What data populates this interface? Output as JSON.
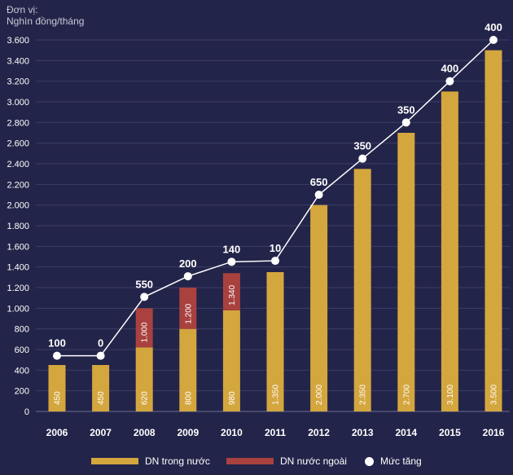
{
  "unit_label_line1": "Đơn vị:",
  "unit_label_line2": "Nghìn đồng/tháng",
  "colors": {
    "background": "#232449",
    "domestic": "#d4a63e",
    "foreign": "#a9413f",
    "line": "#ffffff",
    "grid": "#3c3d66"
  },
  "legend": {
    "domestic": "DN trong nước",
    "foreign": "DN nước ngoài",
    "increase": "Mức tăng"
  },
  "chart_data": {
    "type": "bar",
    "stacked": true,
    "categories": [
      "2006",
      "2007",
      "2008",
      "2009",
      "2010",
      "2011",
      "2012",
      "2013",
      "2014",
      "2015",
      "2016"
    ],
    "series": [
      {
        "name": "DN trong nước",
        "values": [
          450,
          450,
          620,
          800,
          980,
          1350,
          2000,
          2350,
          2700,
          3100,
          3500
        ],
        "labels": [
          "450",
          "450",
          "620",
          "800",
          "980",
          "1.350",
          "2.000",
          "2.350",
          "2.700",
          "3.100",
          "3.500"
        ]
      },
      {
        "name": "DN nước ngoài",
        "values": [
          0,
          0,
          380,
          400,
          360,
          0,
          0,
          0,
          0,
          0,
          0
        ],
        "labels": [
          "",
          "",
          "1.000",
          "1.200",
          "1.340",
          "",
          "",
          "",
          "",
          "",
          ""
        ]
      }
    ],
    "line_series": {
      "name": "Mức tăng",
      "point_levels": [
        540,
        540,
        1110,
        1310,
        1450,
        1460,
        2100,
        2450,
        2800,
        3200,
        3600
      ],
      "labels": [
        "100",
        "0",
        "550",
        "200",
        "140",
        "10",
        "650",
        "350",
        "350",
        "400",
        "400"
      ]
    },
    "yticks": [
      0,
      200,
      400,
      600,
      800,
      1000,
      1200,
      1400,
      1600,
      1800,
      2000,
      2200,
      2400,
      2600,
      2800,
      3000,
      3200,
      3400,
      3600
    ],
    "ytick_labels": [
      "0",
      "200",
      "400",
      "600",
      "800",
      "1.000",
      "1.200",
      "1.400",
      "1.600",
      "1.800",
      "2.000",
      "2.200",
      "2.400",
      "2.600",
      "2.800",
      "3.000",
      "3.200",
      "3.400",
      "3.600"
    ],
    "ylim": [
      0,
      3600
    ],
    "grid": true,
    "legend_position": "bottom"
  }
}
